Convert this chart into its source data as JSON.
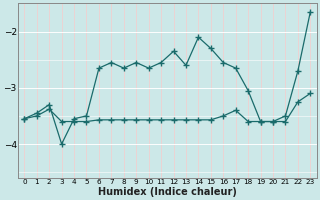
{
  "xlabel": "Humidex (Indice chaleur)",
  "ylabel": "",
  "background_color": "#cce8e8",
  "grid_color": "#ffffff",
  "line_color": "#1a6b6b",
  "xlim": [
    -0.5,
    23.5
  ],
  "ylim": [
    -4.6,
    -1.5
  ],
  "xticks": [
    0,
    1,
    2,
    3,
    4,
    5,
    6,
    7,
    8,
    9,
    10,
    11,
    12,
    13,
    14,
    15,
    16,
    17,
    18,
    19,
    20,
    21,
    22,
    23
  ],
  "yticks": [
    -4,
    -3,
    -2
  ],
  "line1_x": [
    0,
    1,
    2,
    3,
    4,
    5,
    6,
    7,
    8,
    9,
    10,
    11,
    12,
    13,
    14,
    15,
    16,
    17,
    18,
    19,
    20,
    21,
    22,
    23
  ],
  "line1_y": [
    -3.55,
    -3.45,
    -3.3,
    -4.0,
    -3.55,
    -3.5,
    -2.65,
    -2.55,
    -2.65,
    -2.55,
    -2.65,
    -2.55,
    -2.35,
    -2.6,
    -2.1,
    -2.3,
    -2.55,
    -2.65,
    -3.05,
    -3.6,
    -3.6,
    -3.6,
    -3.25,
    -3.1
  ],
  "line2_x": [
    0,
    1,
    2,
    3,
    4,
    5,
    6,
    7,
    8,
    9,
    10,
    11,
    12,
    13,
    14,
    15,
    16,
    17,
    18,
    19,
    20,
    21,
    22,
    23
  ],
  "line2_y": [
    -3.55,
    -3.5,
    -3.38,
    -3.6,
    -3.6,
    -3.6,
    -3.57,
    -3.57,
    -3.57,
    -3.57,
    -3.57,
    -3.57,
    -3.57,
    -3.57,
    -3.57,
    -3.57,
    -3.5,
    -3.4,
    -3.6,
    -3.6,
    -3.6,
    -3.5,
    -2.7,
    -1.65
  ]
}
